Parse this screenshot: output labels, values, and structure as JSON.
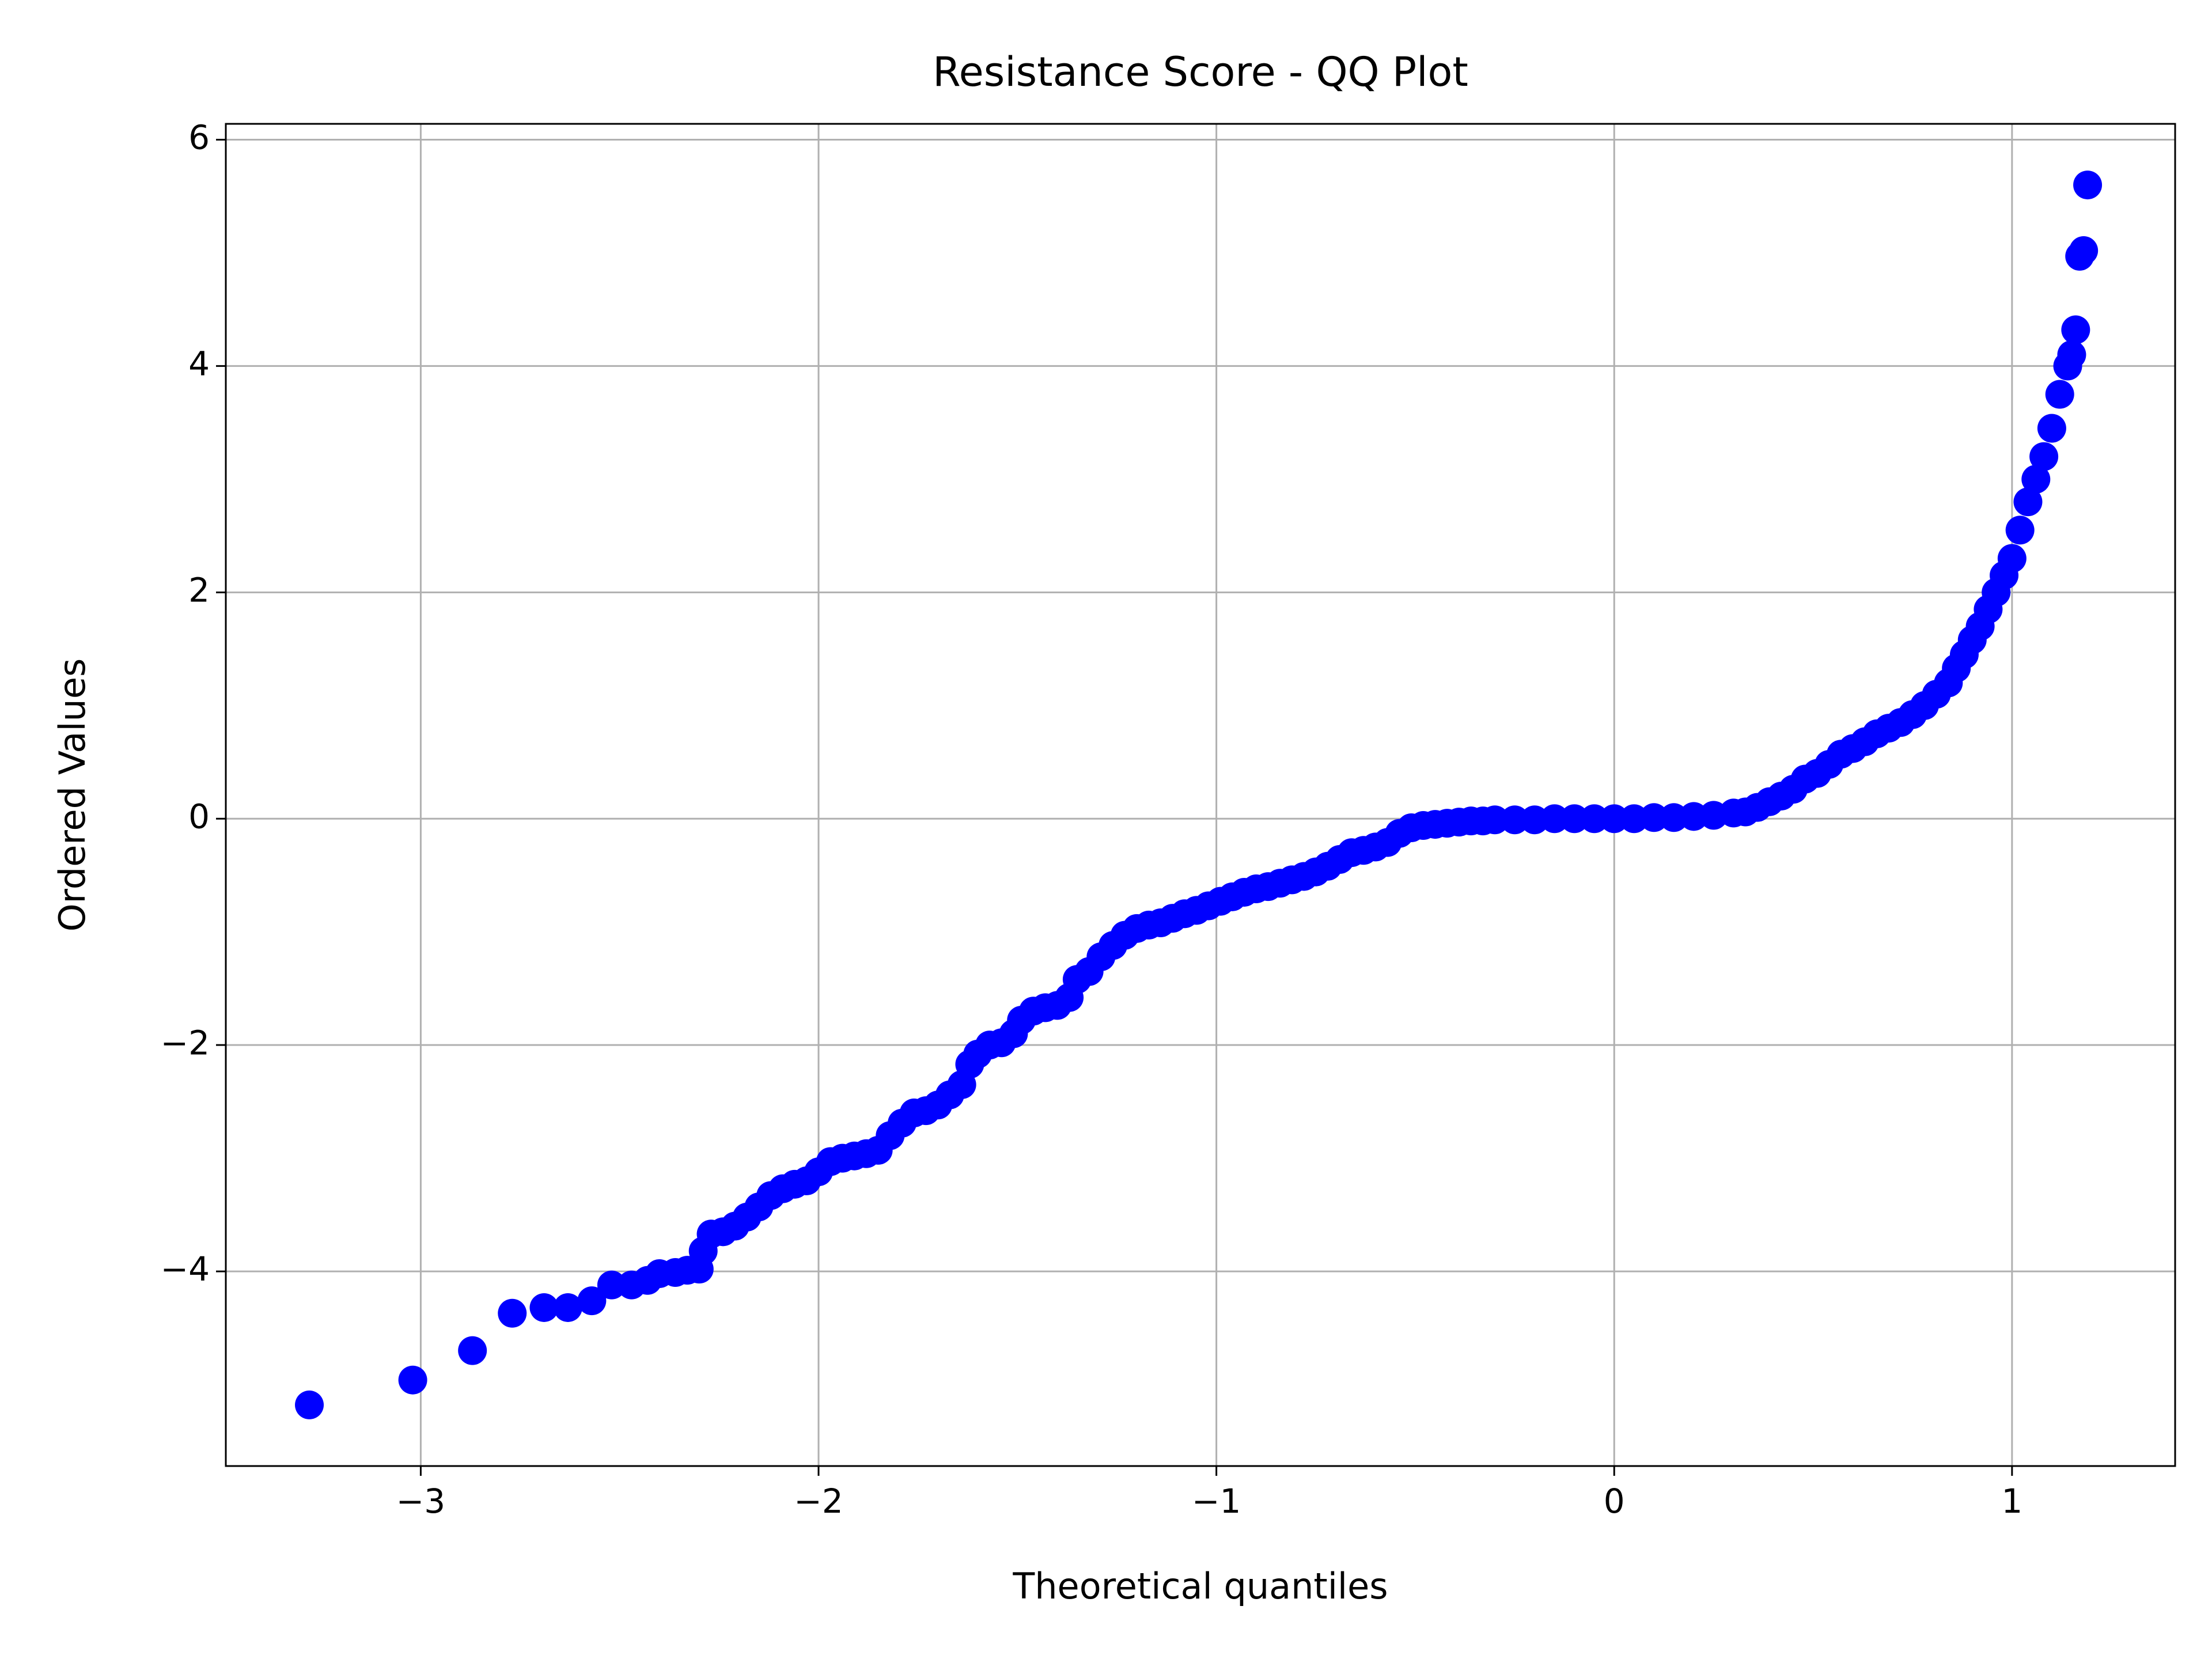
{
  "chart_data": {
    "type": "scatter",
    "title": "Resistance Score - QQ Plot",
    "x_label": "Theoretical quantiles",
    "y_label": "Ordered Values",
    "color": "#0000ff",
    "grid": true,
    "xlim": [
      -3.49,
      1.41
    ],
    "ylim": [
      -5.72,
      6.14
    ],
    "xticks": [
      {
        "value": -3,
        "label": "−3"
      },
      {
        "value": -2,
        "label": "−2"
      },
      {
        "value": -1,
        "label": "−1"
      },
      0,
      1
    ],
    "yticks": [
      {
        "value": -4,
        "label": "−4"
      },
      {
        "value": -2,
        "label": "−2"
      },
      0,
      2,
      4,
      6
    ],
    "x": [
      -3.28,
      -3.02,
      -2.87,
      -2.77,
      -2.69,
      -2.63,
      -2.57,
      -2.52,
      -2.47,
      -2.43,
      -2.4,
      -2.36,
      -2.33,
      -2.3,
      -2.29,
      -2.27,
      -2.24,
      -2.21,
      -2.18,
      -2.15,
      -2.12,
      -2.09,
      -2.06,
      -2.03,
      -2.0,
      -1.97,
      -1.94,
      -1.91,
      -1.88,
      -1.85,
      -1.82,
      -1.79,
      -1.76,
      -1.73,
      -1.7,
      -1.67,
      -1.64,
      -1.62,
      -1.6,
      -1.57,
      -1.54,
      -1.51,
      -1.49,
      -1.46,
      -1.43,
      -1.4,
      -1.37,
      -1.35,
      -1.32,
      -1.29,
      -1.26,
      -1.23,
      -1.2,
      -1.17,
      -1.14,
      -1.11,
      -1.08,
      -1.05,
      -1.02,
      -0.99,
      -0.96,
      -0.93,
      -0.9,
      -0.87,
      -0.84,
      -0.81,
      -0.78,
      -0.75,
      -0.72,
      -0.69,
      -0.66,
      -0.63,
      -0.6,
      -0.57,
      -0.54,
      -0.51,
      -0.48,
      -0.45,
      -0.42,
      -0.39,
      -0.36,
      -0.33,
      -0.3,
      -0.25,
      -0.2,
      -0.15,
      -0.1,
      -0.05,
      0.0,
      0.05,
      0.1,
      0.15,
      0.2,
      0.25,
      0.3,
      0.33,
      0.36,
      0.39,
      0.42,
      0.45,
      0.48,
      0.51,
      0.54,
      0.57,
      0.6,
      0.63,
      0.66,
      0.69,
      0.72,
      0.75,
      0.78,
      0.81,
      0.84,
      0.86,
      0.88,
      0.9,
      0.92,
      0.94,
      0.96,
      0.98,
      1.0,
      1.02,
      1.04,
      1.06,
      1.08,
      1.1,
      1.12,
      1.14,
      1.15,
      1.16,
      1.17,
      1.18,
      1.19
    ],
    "values": [
      -5.18,
      -4.96,
      -4.7,
      -4.37,
      -4.32,
      -4.32,
      -4.26,
      -4.12,
      -4.12,
      -4.08,
      -4.02,
      -4.01,
      -3.99,
      -3.98,
      -3.82,
      -3.67,
      -3.65,
      -3.6,
      -3.52,
      -3.43,
      -3.33,
      -3.27,
      -3.23,
      -3.2,
      -3.12,
      -3.03,
      -3.0,
      -2.98,
      -2.96,
      -2.93,
      -2.8,
      -2.69,
      -2.6,
      -2.58,
      -2.53,
      -2.44,
      -2.35,
      -2.17,
      -2.08,
      -2.0,
      -1.98,
      -1.9,
      -1.78,
      -1.7,
      -1.67,
      -1.65,
      -1.58,
      -1.42,
      -1.35,
      -1.22,
      -1.12,
      -1.03,
      -0.97,
      -0.94,
      -0.92,
      -0.88,
      -0.84,
      -0.81,
      -0.77,
      -0.73,
      -0.69,
      -0.65,
      -0.62,
      -0.6,
      -0.57,
      -0.54,
      -0.51,
      -0.47,
      -0.42,
      -0.36,
      -0.3,
      -0.28,
      -0.25,
      -0.21,
      -0.13,
      -0.08,
      -0.06,
      -0.05,
      -0.04,
      -0.03,
      -0.02,
      -0.02,
      -0.01,
      -0.01,
      -0.01,
      0.0,
      0.0,
      0.0,
      0.0,
      0.0,
      0.01,
      0.01,
      0.02,
      0.03,
      0.05,
      0.06,
      0.1,
      0.15,
      0.2,
      0.26,
      0.35,
      0.4,
      0.48,
      0.57,
      0.62,
      0.68,
      0.75,
      0.8,
      0.85,
      0.92,
      1.0,
      1.1,
      1.2,
      1.33,
      1.45,
      1.58,
      1.7,
      1.85,
      2.0,
      2.15,
      2.3,
      2.55,
      2.8,
      3.0,
      3.2,
      3.45,
      3.75,
      4.0,
      4.1,
      4.32,
      4.97,
      5.02,
      5.6
    ]
  }
}
